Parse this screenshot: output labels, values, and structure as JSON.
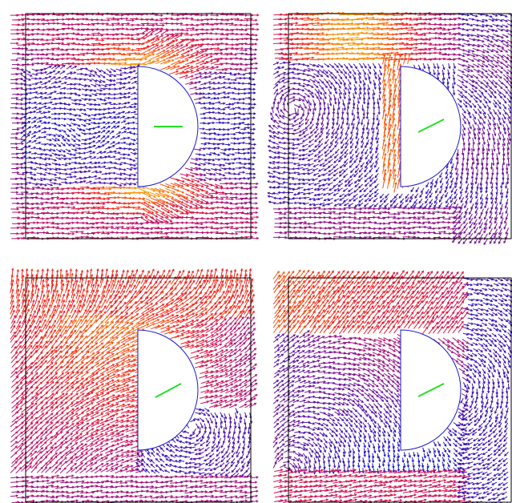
{
  "figure": {
    "panel_count": 4,
    "colors": {
      "background": "#ffffff",
      "frame": "#000000",
      "obstacle_outline": "#1a1ad0",
      "direction_indicator": "#22e022",
      "speed_low": "#1010c8",
      "speed_mid": "#c0106a",
      "speed_high": "#ffb000"
    },
    "panels": [
      {
        "name": "panel-top-left",
        "flow_pattern": "uniform-left-to-right",
        "indicator_angle_deg": 0
      },
      {
        "name": "panel-top-right",
        "flow_pattern": "vortex-near-obstacle",
        "indicator_angle_deg": -28
      },
      {
        "name": "panel-bottom-left",
        "flow_pattern": "strong-upward-swirl",
        "indicator_angle_deg": -28
      },
      {
        "name": "panel-bottom-right",
        "flow_pattern": "mixed-swirl",
        "indicator_angle_deg": -28
      }
    ]
  }
}
